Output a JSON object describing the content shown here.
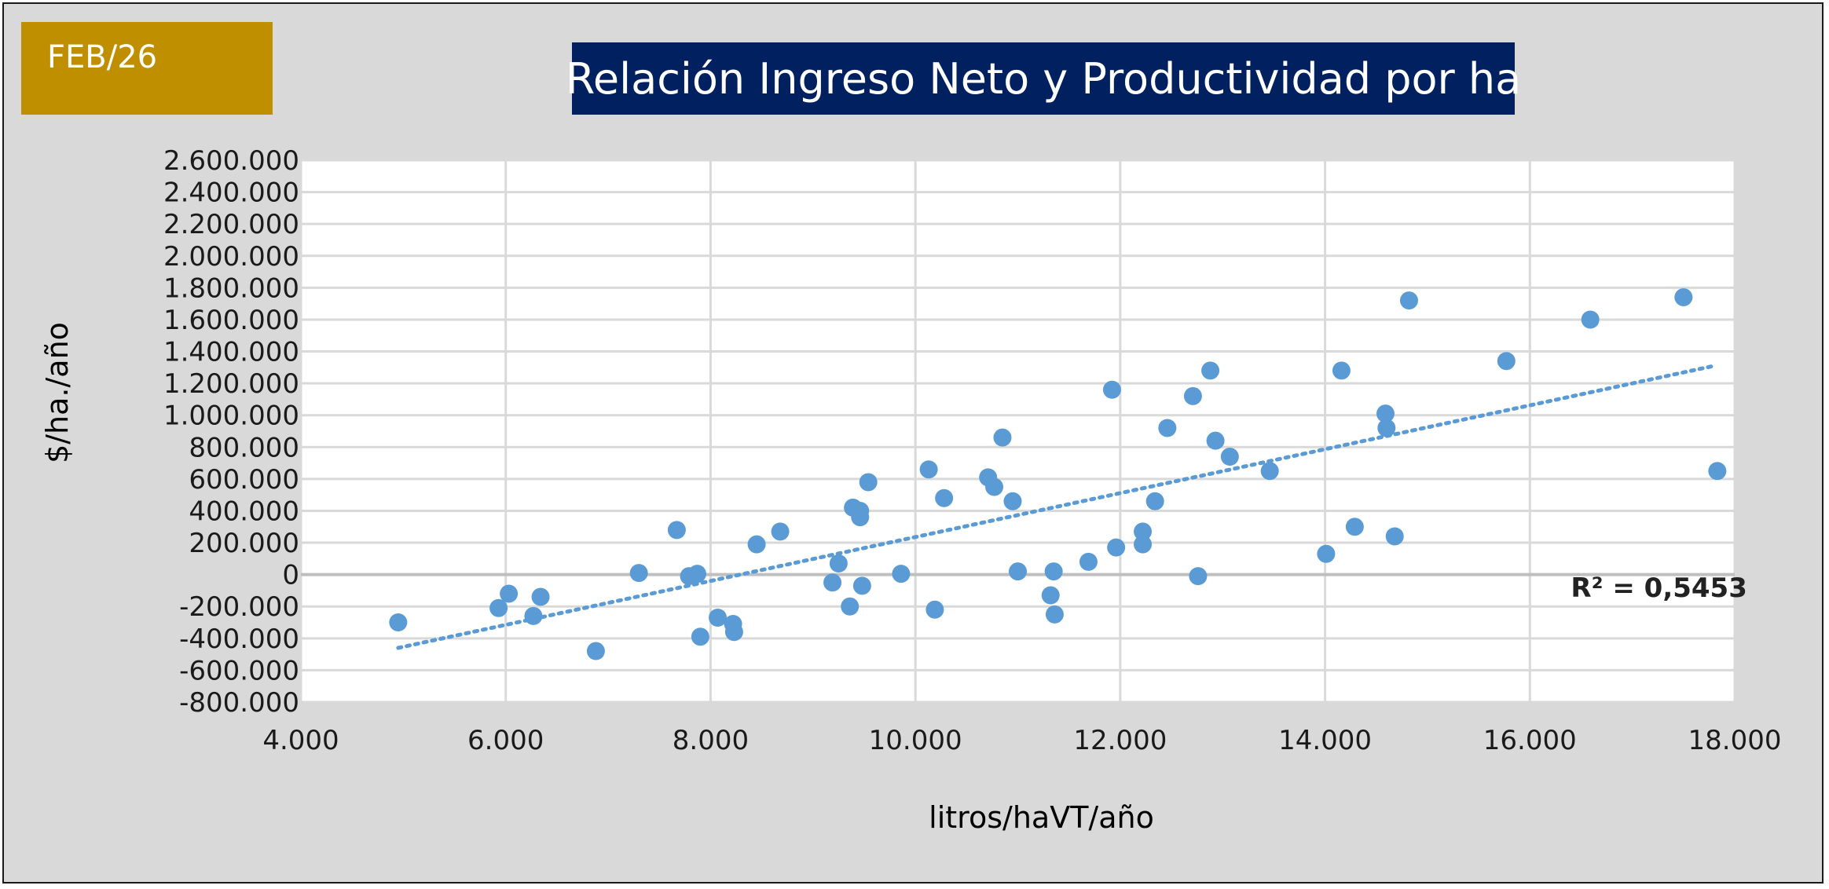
{
  "badge": {
    "label": "FEB/26"
  },
  "chart_data": {
    "type": "scatter",
    "title": "Relación Ingreso Neto y Productividad por ha",
    "xlabel": "litros/haVT/año",
    "ylabel": "$/ha./año",
    "xlim": [
      4000,
      18000
    ],
    "ylim": [
      -800000,
      2600000
    ],
    "x_ticks": [
      4000,
      6000,
      8000,
      10000,
      12000,
      14000,
      16000,
      18000
    ],
    "x_tick_labels": [
      "4.000",
      "6.000",
      "8.000",
      "10.000",
      "12.000",
      "14.000",
      "16.000",
      "18.000"
    ],
    "y_ticks": [
      2600000,
      2400000,
      2200000,
      2000000,
      1800000,
      1600000,
      1400000,
      1200000,
      1000000,
      800000,
      600000,
      400000,
      200000,
      0,
      -200000,
      -400000,
      -600000,
      -800000
    ],
    "y_tick_labels": [
      "2.600.000",
      "2.400.000",
      "2.200.000",
      "2.000.000",
      "1.800.000",
      "1.600.000",
      "1.400.000",
      "1.200.000",
      "1.000.000",
      "800.000",
      "600.000",
      "400.000",
      "200.000",
      "0",
      "-200.000",
      "-400.000",
      "-600.000",
      "-800.000"
    ],
    "grid": true,
    "colors": {
      "points": "#5b9bd5",
      "trendline": "#5b9bd5",
      "zero_line": "#bfbfbf",
      "grid": "#d9d9d9"
    },
    "points": [
      [
        4950,
        -300000
      ],
      [
        5930,
        -210000
      ],
      [
        6030,
        -120000
      ],
      [
        6270,
        -260000
      ],
      [
        6340,
        -140000
      ],
      [
        6880,
        -480000
      ],
      [
        7300,
        10000
      ],
      [
        7670,
        280000
      ],
      [
        7790,
        -10000
      ],
      [
        7870,
        5000
      ],
      [
        7900,
        -390000
      ],
      [
        8070,
        -270000
      ],
      [
        8220,
        -310000
      ],
      [
        8230,
        -360000
      ],
      [
        8450,
        190000
      ],
      [
        8680,
        270000
      ],
      [
        9190,
        -50000
      ],
      [
        9250,
        70000
      ],
      [
        9360,
        -200000
      ],
      [
        9390,
        420000
      ],
      [
        9460,
        360000
      ],
      [
        9460,
        400000
      ],
      [
        9480,
        -70000
      ],
      [
        9540,
        580000
      ],
      [
        9860,
        5000
      ],
      [
        10130,
        660000
      ],
      [
        10190,
        -220000
      ],
      [
        10280,
        480000
      ],
      [
        10710,
        610000
      ],
      [
        10770,
        550000
      ],
      [
        10850,
        860000
      ],
      [
        10950,
        460000
      ],
      [
        11000,
        20000
      ],
      [
        11320,
        -130000
      ],
      [
        11350,
        20000
      ],
      [
        11360,
        -250000
      ],
      [
        11690,
        80000
      ],
      [
        11920,
        1160000
      ],
      [
        11960,
        170000
      ],
      [
        12220,
        190000
      ],
      [
        12220,
        270000
      ],
      [
        12340,
        460000
      ],
      [
        12460,
        920000
      ],
      [
        12710,
        1120000
      ],
      [
        12760,
        -10000
      ],
      [
        12880,
        1280000
      ],
      [
        12930,
        840000
      ],
      [
        13070,
        740000
      ],
      [
        13460,
        650000
      ],
      [
        14010,
        130000
      ],
      [
        14160,
        1280000
      ],
      [
        14290,
        300000
      ],
      [
        14590,
        1010000
      ],
      [
        14600,
        920000
      ],
      [
        14680,
        240000
      ],
      [
        14820,
        1720000
      ],
      [
        15770,
        1340000
      ],
      [
        16590,
        1600000
      ],
      [
        17500,
        1740000
      ],
      [
        17830,
        650000
      ]
    ],
    "trendline": {
      "type": "linear",
      "dotted": true,
      "x": [
        4950,
        17800
      ],
      "y": [
        -460000,
        1310000
      ]
    },
    "annotations": [
      {
        "text": "R² = 0,5453",
        "x": 16400,
        "y": -140000
      }
    ]
  }
}
